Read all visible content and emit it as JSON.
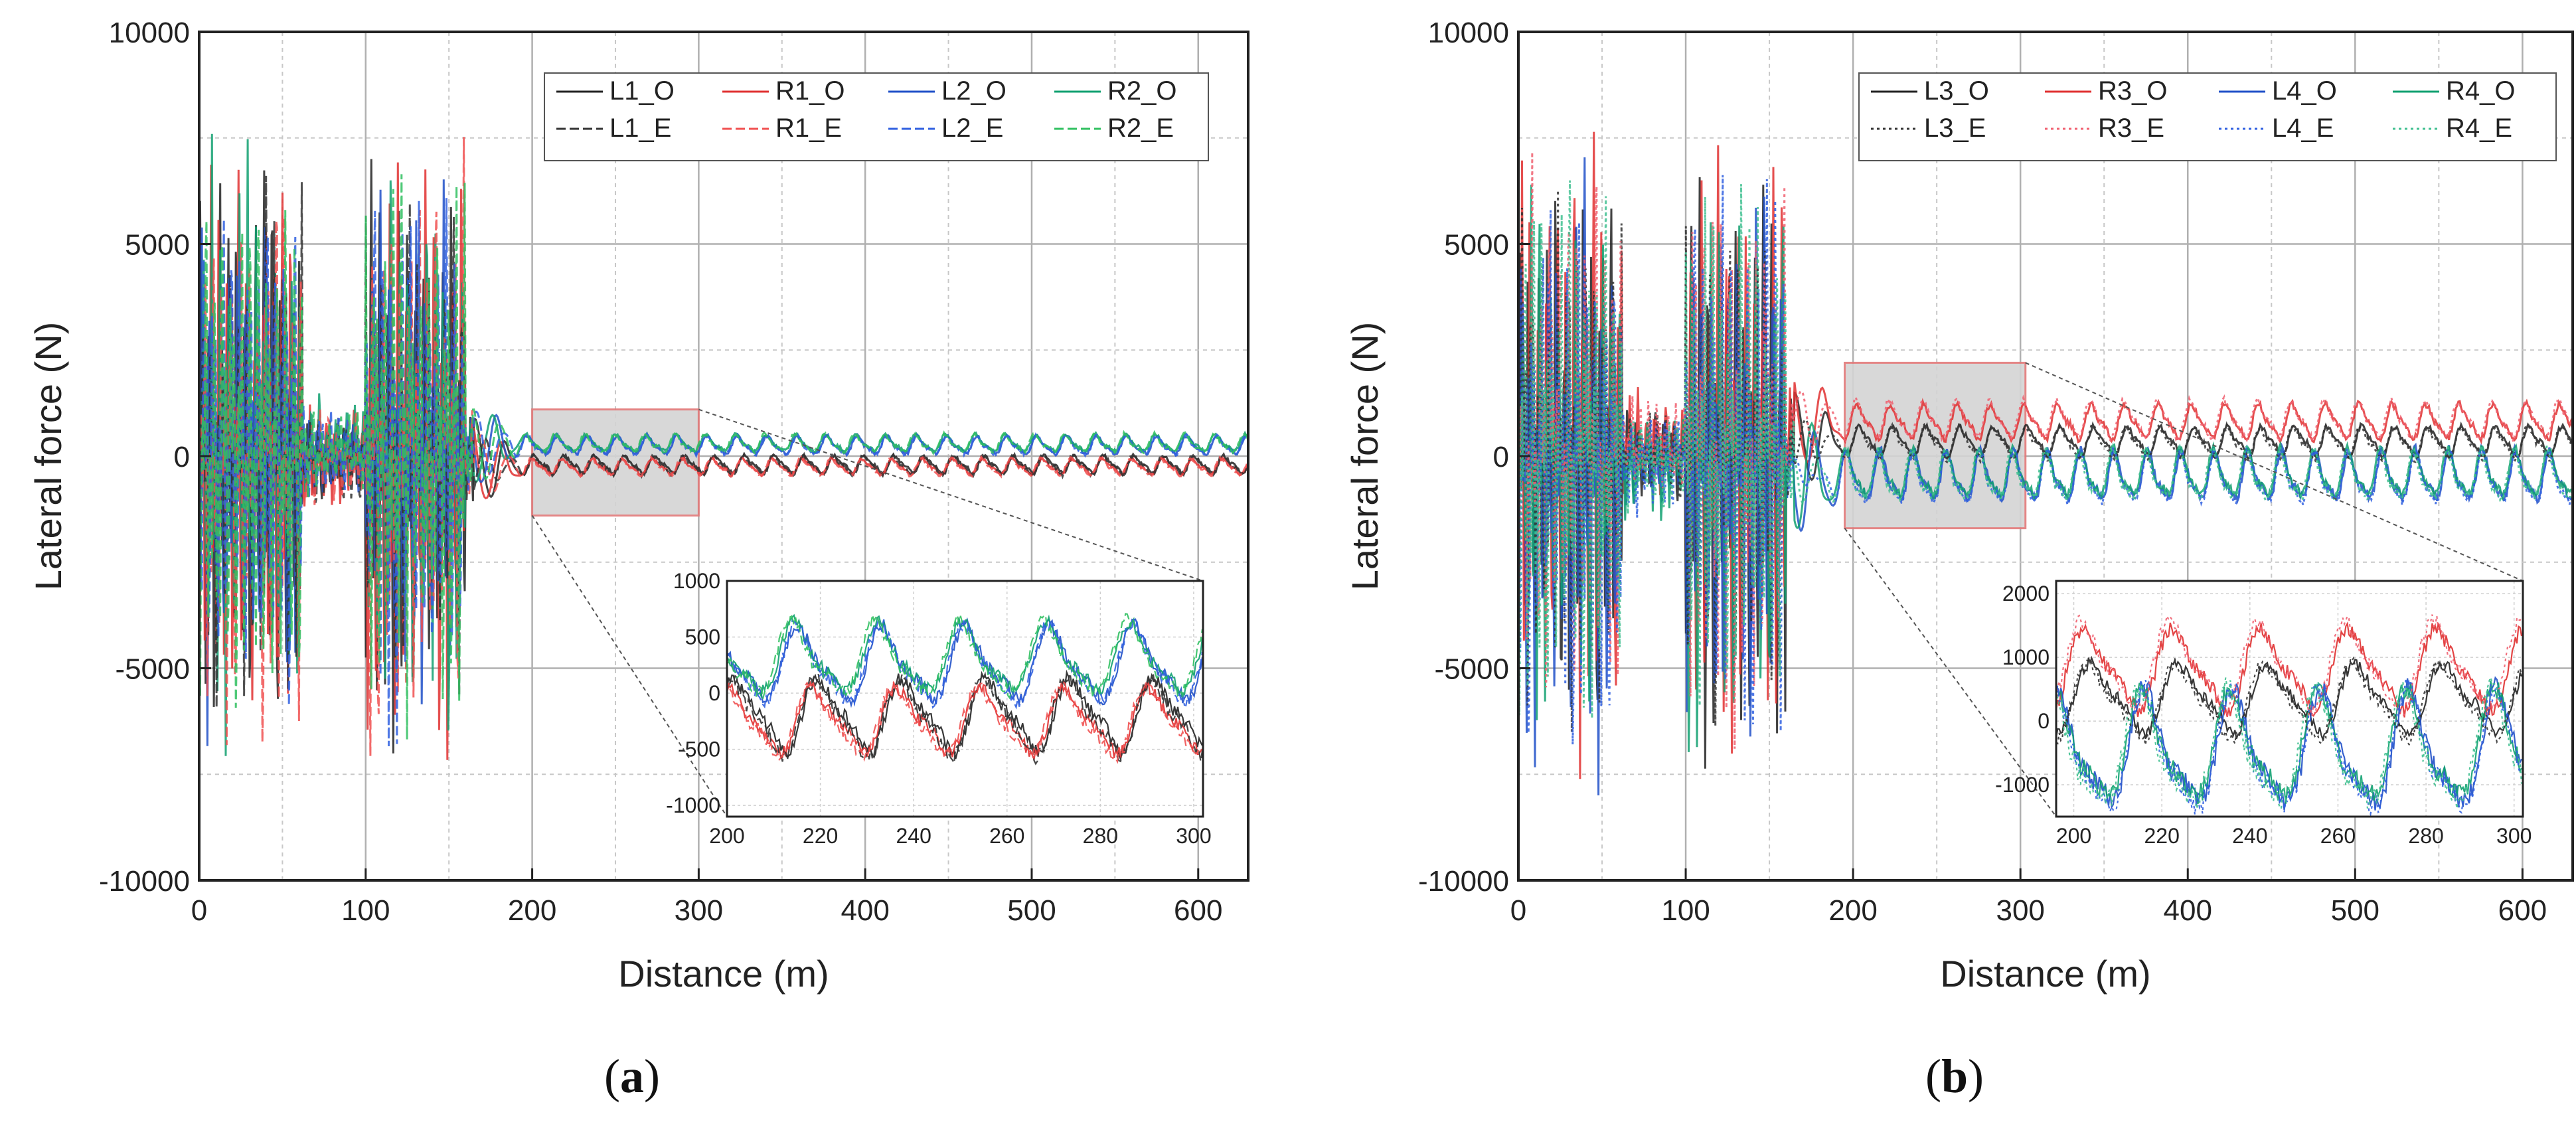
{
  "figure": {
    "captions": [
      "(a)",
      "(b)"
    ],
    "caption_letters": [
      "a",
      "b"
    ]
  },
  "chart_data": [
    {
      "type": "line",
      "panel": "a",
      "xlabel": "Distance (m)",
      "ylabel": "Lateral force (N)",
      "xlim": [
        0,
        630
      ],
      "ylim": [
        -10000,
        10000
      ],
      "xticks": [
        0,
        100,
        200,
        300,
        400,
        500,
        600
      ],
      "yticks": [
        -10000,
        -5000,
        0,
        5000,
        10000
      ],
      "grid": true,
      "legend_position": "top-right",
      "legend": [
        "L1_O",
        "R1_O",
        "L2_O",
        "R2_O",
        "L1_E",
        "R1_E",
        "L2_E",
        "R2_E"
      ],
      "series": [
        {
          "name": "L1_O",
          "color": "#222222",
          "style": "solid",
          "transient_amp": 7000,
          "mean": -200,
          "amp": 180,
          "period": 18,
          "phase": 0.0
        },
        {
          "name": "R1_O",
          "color": "#e03030",
          "style": "solid",
          "transient_amp": 7500,
          "mean": -250,
          "amp": 160,
          "period": 18,
          "phase": 0.4
        },
        {
          "name": "L2_O",
          "color": "#2050c8",
          "style": "solid",
          "transient_amp": 6500,
          "mean": 250,
          "amp": 180,
          "period": 18,
          "phase": 1.6
        },
        {
          "name": "R2_O",
          "color": "#10a070",
          "style": "solid",
          "transient_amp": 7000,
          "mean": 300,
          "amp": 170,
          "period": 18,
          "phase": 1.9
        },
        {
          "name": "L1_E",
          "color": "#333333",
          "style": "dashed",
          "transient_amp": 6800,
          "mean": -220,
          "amp": 190,
          "period": 18,
          "phase": 0.2
        },
        {
          "name": "R1_E",
          "color": "#f05050",
          "style": "dashed",
          "transient_amp": 7200,
          "mean": -260,
          "amp": 170,
          "period": 18,
          "phase": 0.6
        },
        {
          "name": "L2_E",
          "color": "#3060e0",
          "style": "dashed",
          "transient_amp": 6600,
          "mean": 240,
          "amp": 190,
          "period": 18,
          "phase": 1.7
        },
        {
          "name": "R2_E",
          "color": "#30c060",
          "style": "dashed",
          "transient_amp": 7100,
          "mean": 290,
          "amp": 180,
          "period": 18,
          "phase": 2.1
        }
      ],
      "highlight_region": {
        "x": [
          200,
          300
        ],
        "y": [
          -1400,
          1100
        ]
      },
      "inset": {
        "xlim": [
          200,
          302
        ],
        "ylim": [
          -1100,
          1000
        ],
        "xticks": [
          200,
          220,
          240,
          260,
          280,
          300
        ],
        "yticks": [
          -1000,
          -500,
          0,
          500,
          1000
        ],
        "grid": true
      }
    },
    {
      "type": "line",
      "panel": "b",
      "xlabel": "Distance (m)",
      "ylabel": "Lateral force (N)",
      "xlim": [
        0,
        630
      ],
      "ylim": [
        -10000,
        10000
      ],
      "xticks": [
        0,
        100,
        200,
        300,
        400,
        500,
        600
      ],
      "yticks": [
        -10000,
        -5000,
        0,
        5000,
        10000
      ],
      "grid": true,
      "legend_position": "top-right",
      "legend": [
        "L3_O",
        "R3_O",
        "L4_O",
        "R4_O",
        "L3_E",
        "R3_E",
        "L4_E",
        "R4_E"
      ],
      "series": [
        {
          "name": "L3_O",
          "color": "#222222",
          "style": "solid",
          "transient_amp": 7000,
          "mean": 350,
          "amp": 300,
          "period": 20,
          "phase": 0.0
        },
        {
          "name": "R3_O",
          "color": "#e03030",
          "style": "solid",
          "transient_amp": 7500,
          "mean": 800,
          "amp": 350,
          "period": 20,
          "phase": 0.5
        },
        {
          "name": "L4_O",
          "color": "#2050c8",
          "style": "solid",
          "transient_amp": 7200,
          "mean": -500,
          "amp": 500,
          "period": 20,
          "phase": 2.6
        },
        {
          "name": "R4_O",
          "color": "#10a070",
          "style": "solid",
          "transient_amp": 7000,
          "mean": -450,
          "amp": 480,
          "period": 20,
          "phase": 2.8
        },
        {
          "name": "L3_E",
          "color": "#333333",
          "style": "dotted",
          "transient_amp": 6800,
          "mean": 300,
          "amp": 320,
          "period": 20,
          "phase": 0.2
        },
        {
          "name": "R3_E",
          "color": "#f06070",
          "style": "dotted",
          "transient_amp": 7300,
          "mean": 850,
          "amp": 380,
          "period": 20,
          "phase": 0.7
        },
        {
          "name": "L4_E",
          "color": "#3060e0",
          "style": "dotted",
          "transient_amp": 7100,
          "mean": -550,
          "amp": 520,
          "period": 20,
          "phase": 2.7
        },
        {
          "name": "R4_E",
          "color": "#40c090",
          "style": "dotted",
          "transient_amp": 6900,
          "mean": -500,
          "amp": 500,
          "period": 20,
          "phase": 3.0
        }
      ],
      "highlight_region": {
        "x": [
          195,
          303
        ],
        "y": [
          -1700,
          2200
        ]
      },
      "inset": {
        "xlim": [
          196,
          302
        ],
        "ylim": [
          -1500,
          2200
        ],
        "xticks": [
          200,
          220,
          240,
          260,
          280,
          300
        ],
        "yticks": [
          -1000,
          0,
          1000,
          2000
        ],
        "grid": true
      }
    }
  ]
}
